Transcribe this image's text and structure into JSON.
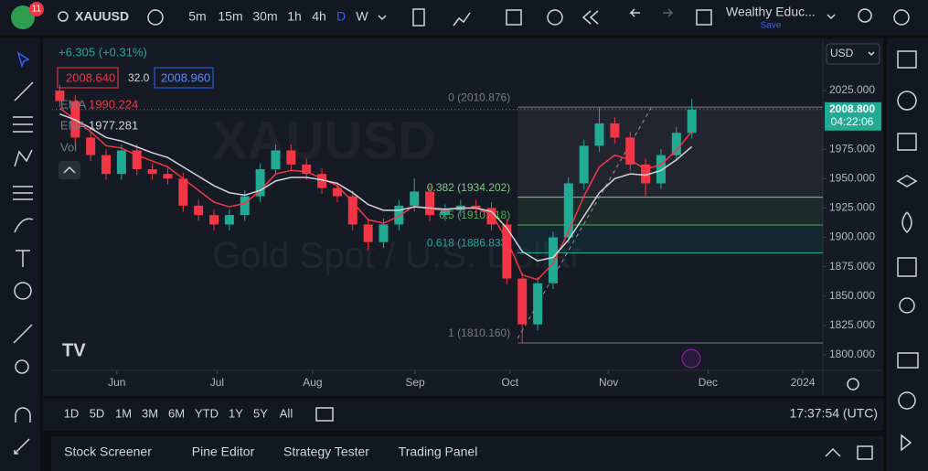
{
  "toolbar": {
    "badge": "11",
    "symbol": "XAUUSD",
    "intervals": [
      "5m",
      "15m",
      "30m",
      "1h",
      "4h",
      "D",
      "W"
    ],
    "layout_name": "Wealthy Educ...",
    "save": "Save"
  },
  "legend": {
    "change": "+6.305 (+0.31%)",
    "bid": "2008.640",
    "spread": "32.0",
    "ask": "2008.960",
    "ema_fast_value": "1990.224",
    "ema_slow_value": "1977.281",
    "volume": "Vol"
  },
  "watermark": {
    "symbol": "XAUUSD",
    "description": "Gold Spot / U.S. Dollar"
  },
  "chart_data": {
    "type": "candlestick",
    "currency": "USD",
    "x": [
      1,
      3,
      5,
      7,
      9,
      11,
      13,
      15,
      17,
      19,
      21,
      23,
      25,
      27,
      29,
      31,
      33,
      35,
      37,
      39,
      41,
      43,
      45,
      47,
      49,
      51,
      53,
      55,
      57,
      59,
      61,
      63,
      65,
      67,
      69,
      71,
      73,
      75,
      77,
      79,
      81,
      83
    ],
    "open": [
      2025,
      2016,
      1985,
      1970,
      1954,
      1974,
      1958,
      1954,
      1950,
      1927,
      1919,
      1911,
      1919,
      1935,
      1958,
      1974,
      1962,
      1954,
      1942,
      1935,
      1911,
      1896,
      1911,
      1927,
      1939,
      1919,
      1923,
      1927,
      1925,
      1911,
      1865,
      1826,
      1861,
      1900,
      1946,
      1978,
      1997,
      1985,
      1962,
      1946,
      1970,
      1989
    ],
    "high": [
      2030,
      2021,
      1990,
      1975,
      1979,
      1979,
      1963,
      1959,
      1955,
      1932,
      1924,
      1924,
      1940,
      1963,
      1979,
      1979,
      1967,
      1959,
      1947,
      1940,
      1916,
      1916,
      1932,
      1950,
      1944,
      1928,
      1932,
      1932,
      1930,
      1916,
      1870,
      1866,
      1905,
      1951,
      1983,
      2010.876,
      2002,
      1990,
      1967,
      1975,
      1994,
      2018
    ],
    "low": [
      2011,
      1980,
      1965,
      1949,
      1949,
      1953,
      1949,
      1945,
      1922,
      1914,
      1906,
      1906,
      1914,
      1930,
      1953,
      1957,
      1949,
      1937,
      1930,
      1906,
      1889,
      1891,
      1906,
      1922,
      1914,
      1914,
      1918,
      1920,
      1906,
      1860,
      1810.16,
      1821,
      1856,
      1895,
      1941,
      1973,
      1980,
      1957,
      1935,
      1941,
      1965,
      1984
    ],
    "close": [
      2016,
      1985,
      1970,
      1954,
      1974,
      1958,
      1954,
      1950,
      1927,
      1919,
      1911,
      1919,
      1935,
      1958,
      1974,
      1962,
      1954,
      1942,
      1935,
      1911,
      1896,
      1911,
      1927,
      1939,
      1919,
      1923,
      1927,
      1925,
      1911,
      1865,
      1826,
      1861,
      1900,
      1946,
      1978,
      1997,
      1985,
      1962,
      1946,
      1970,
      1989,
      2008.8
    ],
    "up_color": "#22ab94",
    "down_color": "#f23645",
    "series": [
      {
        "name": "EMA",
        "color": "#f23645",
        "values": [
          2010,
          2000,
          1990,
          1978,
          1976,
          1970,
          1965,
          1960,
          1950,
          1940,
          1930,
          1926,
          1929,
          1940,
          1954,
          1957,
          1956,
          1950,
          1944,
          1930,
          1915,
          1912,
          1918,
          1927,
          1924,
          1923,
          1925,
          1925,
          1920,
          1898,
          1868,
          1864,
          1878,
          1905,
          1935,
          1960,
          1970,
          1966,
          1958,
          1962,
          1974,
          1990.224
        ]
      },
      {
        "name": "EMA",
        "color": "#d1d4dc",
        "values": [
          2005,
          2000,
          1993,
          1985,
          1982,
          1977,
          1972,
          1968,
          1960,
          1952,
          1944,
          1938,
          1936,
          1940,
          1948,
          1951,
          1951,
          1949,
          1946,
          1938,
          1928,
          1923,
          1923,
          1926,
          1925,
          1924,
          1925,
          1925,
          1922,
          1908,
          1888,
          1880,
          1883,
          1898,
          1918,
          1938,
          1950,
          1954,
          1953,
          1957,
          1966,
          1977.281
        ]
      }
    ],
    "fib_levels": [
      {
        "value": 2010.876,
        "label": "0 (2010.876)"
      },
      {
        "value": 1934.202,
        "label": "0.382 (1934.202)"
      },
      {
        "value": 1910.518,
        "label": "0.5 (1910.518)"
      },
      {
        "value": 1886.833,
        "label": "0.618 (1886.833)"
      },
      {
        "value": 1810.16,
        "label": "1 (1810.160)"
      }
    ],
    "last_price": {
      "label": "2008.800",
      "countdown": "04:22:06"
    },
    "ylim": [
      1786.8,
      2067
    ],
    "yticks": [
      {
        "value": 1800,
        "label": "1800.000"
      },
      {
        "value": 1825,
        "label": "1825.000"
      },
      {
        "value": 1850,
        "label": "1850.000"
      },
      {
        "value": 1875,
        "label": "1875.000"
      },
      {
        "value": 1900,
        "label": "1900.000"
      },
      {
        "value": 1925,
        "label": "1925.000"
      },
      {
        "value": 1950,
        "label": "1950.000"
      },
      {
        "value": 1975,
        "label": "1975.000"
      },
      {
        "value": 2025,
        "label": "2025.000"
      }
    ],
    "xlim": [
      0,
      100
    ],
    "xticks": [
      {
        "value": 8.4,
        "label": "Jun"
      },
      {
        "value": 21.4,
        "label": "Jul"
      },
      {
        "value": 33.8,
        "label": "Aug"
      },
      {
        "value": 47.1,
        "label": "Sep"
      },
      {
        "value": 59.4,
        "label": "Oct"
      },
      {
        "value": 72.2,
        "label": "Nov"
      },
      {
        "value": 85.1,
        "label": "Dec"
      },
      {
        "value": 97.4,
        "label": "2024"
      }
    ]
  },
  "time_ranges": [
    "1D",
    "5D",
    "1M",
    "3M",
    "6M",
    "YTD",
    "1Y",
    "5Y",
    "All"
  ],
  "clock": "17:37:54 (UTC)",
  "bottom_tabs": [
    "Stock Screener",
    "Pine Editor",
    "Strategy Tester",
    "Trading Panel"
  ]
}
